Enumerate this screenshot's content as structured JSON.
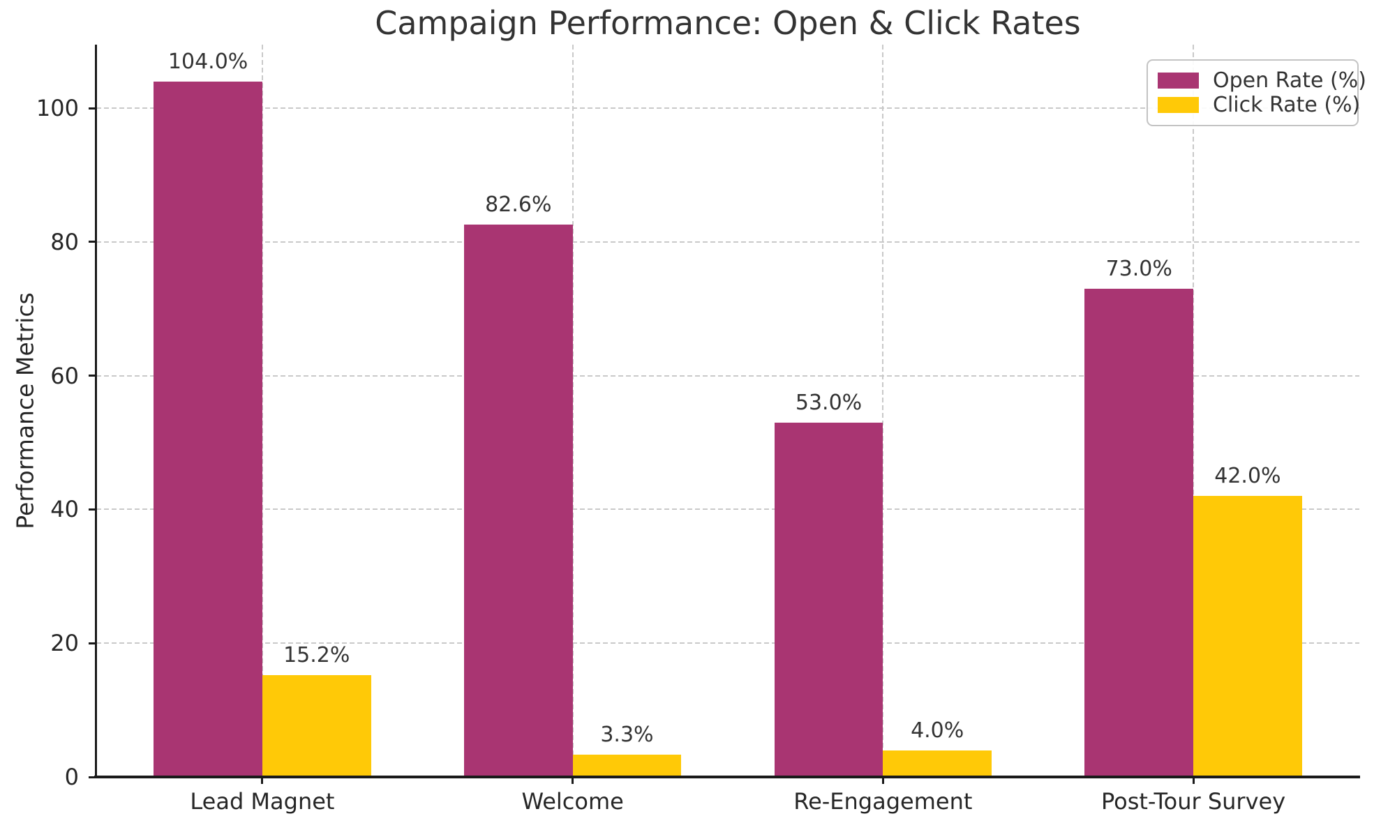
{
  "title": "Campaign Performance: Open & Click Rates",
  "y_axis": {
    "label": "Performance Metrics",
    "tick_labels": [
      "0",
      "20",
      "40",
      "60",
      "80",
      "100"
    ]
  },
  "legend": {
    "items": [
      {
        "label": "Open Rate (%)",
        "color": "#A93572"
      },
      {
        "label": "Click Rate (%)",
        "color": "#FFC907"
      }
    ]
  },
  "colors": {
    "open_rate": "#A93572",
    "click_rate": "#FFC907",
    "spine": "#1a1a1a",
    "grid": "#c9c9c9",
    "text": "#333333"
  },
  "chart_data": {
    "type": "bar",
    "title": "Campaign Performance: Open & Click Rates",
    "xlabel": "",
    "ylabel": "Performance Metrics",
    "categories": [
      "Lead Magnet",
      "Welcome",
      "Re-Engagement",
      "Post-Tour Survey"
    ],
    "series": [
      {
        "name": "Open Rate (%)",
        "color": "#A93572",
        "values": [
          104.0,
          82.6,
          53.0,
          73.0
        ],
        "labels": [
          "104.0%",
          "82.6%",
          "53.0%",
          "73.0%"
        ]
      },
      {
        "name": "Click Rate (%)",
        "color": "#FFC907",
        "values": [
          15.2,
          3.3,
          4.0,
          42.0
        ],
        "labels": [
          "15.2%",
          "3.3%",
          "4.0%",
          "42.0%"
        ]
      }
    ],
    "yticks": [
      0,
      20,
      40,
      60,
      80,
      100
    ],
    "ylim": [
      0,
      109.5
    ],
    "bar_width": 0.35,
    "grid": true,
    "grid_style": "dashed",
    "legend_position": "upper right"
  }
}
